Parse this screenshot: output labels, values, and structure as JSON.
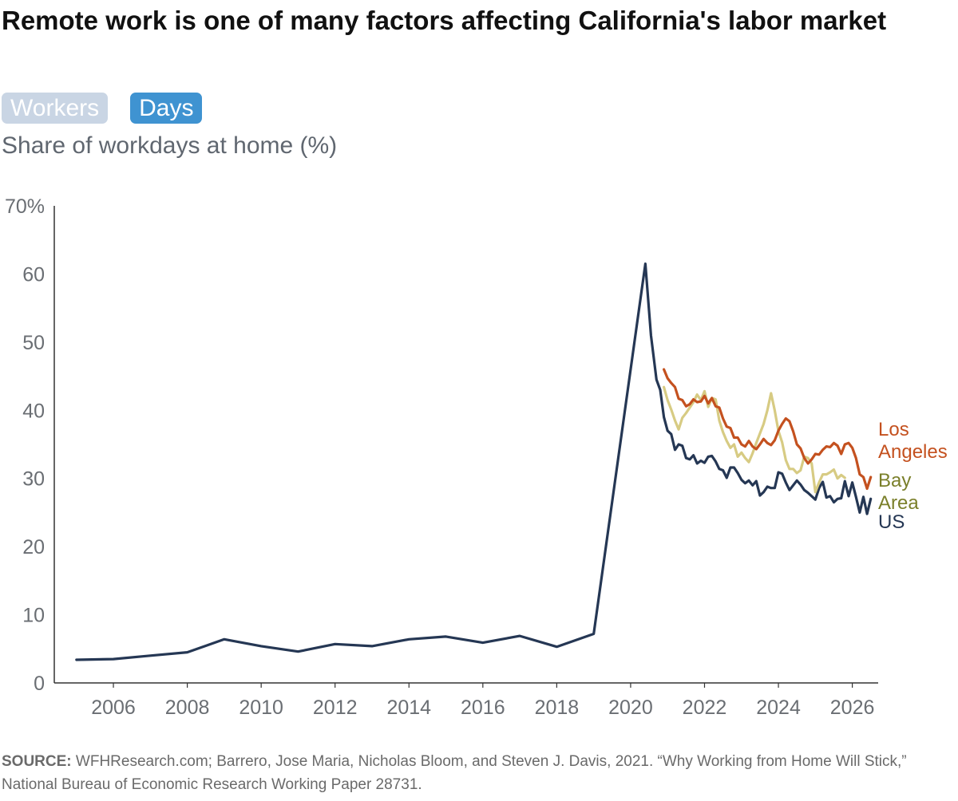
{
  "header": {
    "title": "Remote work is one of many factors affecting California's labor market",
    "subtitle": "Share of workdays at home (%)"
  },
  "toggles": [
    {
      "label": "Workers",
      "active": false
    },
    {
      "label": "Days",
      "active": true
    }
  ],
  "colors": {
    "us": "#253754",
    "los_angeles": "#c4511f",
    "bay_area": "#d7cb83",
    "bay_area_label": "#7a7f2a",
    "axis": "#333333",
    "tick_text": "#6a6e73",
    "toggle_inactive": "#c9d5e4",
    "toggle_active": "#3f93d1"
  },
  "chart_data": {
    "type": "line",
    "ylim": [
      0,
      70
    ],
    "xlim": [
      2004.4,
      2026.7
    ],
    "ytick_labels": [
      "0",
      "10",
      "20",
      "30",
      "40",
      "50",
      "60",
      "70%"
    ],
    "xtick_labels": [
      "2006",
      "2008",
      "2010",
      "2012",
      "2014",
      "2016",
      "2018",
      "2020",
      "2022",
      "2024",
      "2026"
    ],
    "series": [
      {
        "name": "US",
        "color": "#253754",
        "points": [
          [
            2005.0,
            3.4
          ],
          [
            2006.0,
            3.5
          ],
          [
            2007.0,
            4.0
          ],
          [
            2008.0,
            4.5
          ],
          [
            2009.0,
            6.4
          ],
          [
            2010.0,
            5.4
          ],
          [
            2011.0,
            4.6
          ],
          [
            2012.0,
            5.7
          ],
          [
            2013.0,
            5.4
          ],
          [
            2014.0,
            6.4
          ],
          [
            2015.0,
            6.8
          ],
          [
            2016.0,
            5.9
          ],
          [
            2017.0,
            6.9
          ],
          [
            2018.0,
            5.3
          ],
          [
            2019.0,
            7.2
          ],
          [
            2020.4,
            61.5
          ],
          [
            2020.55,
            51
          ],
          [
            2020.7,
            44.5
          ],
          [
            2020.8,
            43
          ],
          [
            2020.9,
            39
          ],
          [
            2021.0,
            37
          ],
          [
            2021.1,
            36.5
          ],
          [
            2021.2,
            34.2
          ],
          [
            2021.3,
            35
          ],
          [
            2021.4,
            34.8
          ],
          [
            2021.5,
            33
          ],
          [
            2021.6,
            32.8
          ],
          [
            2021.7,
            33.4
          ],
          [
            2021.8,
            32.2
          ],
          [
            2021.9,
            32.6
          ],
          [
            2022.0,
            32.3
          ],
          [
            2022.1,
            33.2
          ],
          [
            2022.2,
            33.3
          ],
          [
            2022.3,
            32.5
          ],
          [
            2022.4,
            31.4
          ],
          [
            2022.5,
            31.2
          ],
          [
            2022.6,
            30.1
          ],
          [
            2022.7,
            31.6
          ],
          [
            2022.8,
            31.6
          ],
          [
            2022.9,
            30.8
          ],
          [
            2023.0,
            29.8
          ],
          [
            2023.1,
            29.3
          ],
          [
            2023.2,
            29.7
          ],
          [
            2023.3,
            29.0
          ],
          [
            2023.4,
            29.6
          ],
          [
            2023.5,
            27.5
          ],
          [
            2023.6,
            28.0
          ],
          [
            2023.7,
            28.8
          ],
          [
            2023.8,
            28.6
          ],
          [
            2023.9,
            28.6
          ],
          [
            2024.0,
            30.9
          ],
          [
            2024.1,
            30.7
          ],
          [
            2024.2,
            29.4
          ],
          [
            2024.3,
            28.3
          ],
          [
            2024.4,
            29.0
          ],
          [
            2024.5,
            29.7
          ],
          [
            2024.6,
            29.1
          ],
          [
            2024.7,
            28.3
          ],
          [
            2024.8,
            27.9
          ],
          [
            2024.9,
            27.4
          ],
          [
            2025.0,
            26.9
          ],
          [
            2025.1,
            28.6
          ],
          [
            2025.2,
            29.5
          ],
          [
            2025.3,
            27.2
          ],
          [
            2025.4,
            27.4
          ],
          [
            2025.5,
            26.5
          ],
          [
            2025.6,
            27.0
          ],
          [
            2025.7,
            27.1
          ],
          [
            2025.8,
            29.6
          ],
          [
            2025.9,
            27.4
          ],
          [
            2026.0,
            29.4
          ],
          [
            2026.1,
            27.3
          ],
          [
            2026.2,
            25.0
          ],
          [
            2026.3,
            27.3
          ],
          [
            2026.4,
            24.8
          ],
          [
            2026.5,
            27.0
          ]
        ]
      },
      {
        "name": "Los Angeles",
        "color": "#c4511f",
        "points": [
          [
            2020.9,
            46.0
          ],
          [
            2021.0,
            44.7
          ],
          [
            2021.1,
            44.0
          ],
          [
            2021.2,
            43.4
          ],
          [
            2021.3,
            41.7
          ],
          [
            2021.4,
            41.5
          ],
          [
            2021.5,
            40.6
          ],
          [
            2021.6,
            40.9
          ],
          [
            2021.7,
            41.6
          ],
          [
            2021.8,
            41.2
          ],
          [
            2021.9,
            41.3
          ],
          [
            2022.0,
            42.1
          ],
          [
            2022.1,
            41.0
          ],
          [
            2022.2,
            41.8
          ],
          [
            2022.3,
            40.6
          ],
          [
            2022.4,
            40.4
          ],
          [
            2022.5,
            38.8
          ],
          [
            2022.6,
            37.6
          ],
          [
            2022.7,
            37.4
          ],
          [
            2022.8,
            36.0
          ],
          [
            2022.9,
            36.0
          ],
          [
            2023.0,
            35.0
          ],
          [
            2023.1,
            34.7
          ],
          [
            2023.2,
            35.5
          ],
          [
            2023.3,
            34.7
          ],
          [
            2023.4,
            34.3
          ],
          [
            2023.5,
            35.0
          ],
          [
            2023.6,
            35.8
          ],
          [
            2023.7,
            35.2
          ],
          [
            2023.8,
            34.9
          ],
          [
            2023.9,
            35.6
          ],
          [
            2024.0,
            37.0
          ],
          [
            2024.1,
            38.0
          ],
          [
            2024.2,
            38.8
          ],
          [
            2024.3,
            38.4
          ],
          [
            2024.4,
            36.9
          ],
          [
            2024.5,
            35.0
          ],
          [
            2024.6,
            34.4
          ],
          [
            2024.7,
            33.0
          ],
          [
            2024.8,
            32.2
          ],
          [
            2024.9,
            32.8
          ],
          [
            2025.0,
            33.6
          ],
          [
            2025.1,
            33.5
          ],
          [
            2025.2,
            34.2
          ],
          [
            2025.3,
            34.7
          ],
          [
            2025.4,
            34.6
          ],
          [
            2025.5,
            35.2
          ],
          [
            2025.6,
            34.8
          ],
          [
            2025.7,
            33.6
          ],
          [
            2025.8,
            35.0
          ],
          [
            2025.9,
            35.2
          ],
          [
            2026.0,
            34.5
          ],
          [
            2026.1,
            33.0
          ],
          [
            2026.2,
            30.6
          ],
          [
            2026.3,
            30.2
          ],
          [
            2026.4,
            28.5
          ],
          [
            2026.5,
            30.2
          ]
        ]
      },
      {
        "name": "Bay Area",
        "color": "#d7cb83",
        "points": [
          [
            2020.9,
            43.4
          ],
          [
            2021.0,
            41.5
          ],
          [
            2021.1,
            40.1
          ],
          [
            2021.2,
            38.5
          ],
          [
            2021.3,
            37.2
          ],
          [
            2021.4,
            38.9
          ],
          [
            2021.5,
            39.6
          ],
          [
            2021.6,
            40.4
          ],
          [
            2021.7,
            41.2
          ],
          [
            2021.8,
            42.3
          ],
          [
            2021.9,
            41.5
          ],
          [
            2022.0,
            42.8
          ],
          [
            2022.1,
            40.5
          ],
          [
            2022.2,
            41.8
          ],
          [
            2022.3,
            41.6
          ],
          [
            2022.4,
            38.5
          ],
          [
            2022.5,
            36.8
          ],
          [
            2022.6,
            35.5
          ],
          [
            2022.7,
            34.5
          ],
          [
            2022.8,
            35.0
          ],
          [
            2022.9,
            33.2
          ],
          [
            2023.0,
            33.8
          ],
          [
            2023.1,
            33.0
          ],
          [
            2023.2,
            32.4
          ],
          [
            2023.3,
            33.7
          ],
          [
            2023.4,
            35.2
          ],
          [
            2023.5,
            36.6
          ],
          [
            2023.6,
            38.0
          ],
          [
            2023.7,
            40.0
          ],
          [
            2023.8,
            42.5
          ],
          [
            2023.9,
            40.0
          ],
          [
            2024.0,
            37.0
          ],
          [
            2024.1,
            35.3
          ],
          [
            2024.2,
            32.7
          ],
          [
            2024.3,
            31.4
          ],
          [
            2024.4,
            31.4
          ],
          [
            2024.5,
            30.8
          ],
          [
            2024.6,
            31.2
          ],
          [
            2024.7,
            33.2
          ],
          [
            2024.8,
            33.0
          ],
          [
            2024.9,
            32.2
          ],
          [
            2025.0,
            28.0
          ],
          [
            2025.1,
            29.4
          ],
          [
            2025.2,
            30.6
          ],
          [
            2025.3,
            30.6
          ],
          [
            2025.4,
            30.9
          ],
          [
            2025.5,
            31.3
          ],
          [
            2025.6,
            30.0
          ],
          [
            2025.7,
            30.5
          ],
          [
            2025.8,
            30.1
          ]
        ]
      }
    ],
    "series_labels": [
      {
        "lines": [
          "Los",
          "Angeles"
        ],
        "color": "#c4511f"
      },
      {
        "lines": [
          "Bay",
          "Area"
        ],
        "color": "#7a7f2a"
      },
      {
        "lines": [
          "US"
        ],
        "color": "#253754"
      }
    ]
  },
  "source": {
    "label": "SOURCE:",
    "text": " WFHResearch.com; Barrero, Jose Maria, Nicholas Bloom, and Steven J. Davis, 2021. “Why Working from Home Will Stick,” National Bureau of Economic Research Working Paper 28731."
  }
}
